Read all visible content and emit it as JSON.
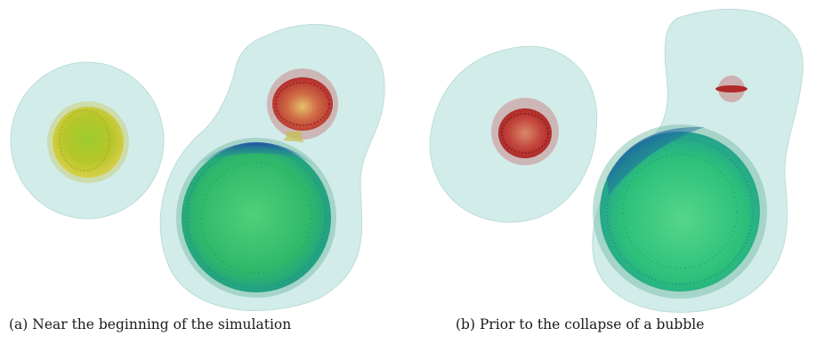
{
  "figure": {
    "panels": [
      {
        "id": "a",
        "caption": "(a) Near the beginning of the simulation"
      },
      {
        "id": "b",
        "caption": "(b) Prior to the collapse of a bubble"
      }
    ],
    "colors": {
      "envelope": "#cfe8e6",
      "envelope_edge": "#b9d9d6",
      "bubble_red": "#c23a3a",
      "bubble_yellow": "#c9c82a",
      "bubble_green": "#36c46a",
      "bubble_blue": "#1b4fb0"
    }
  }
}
